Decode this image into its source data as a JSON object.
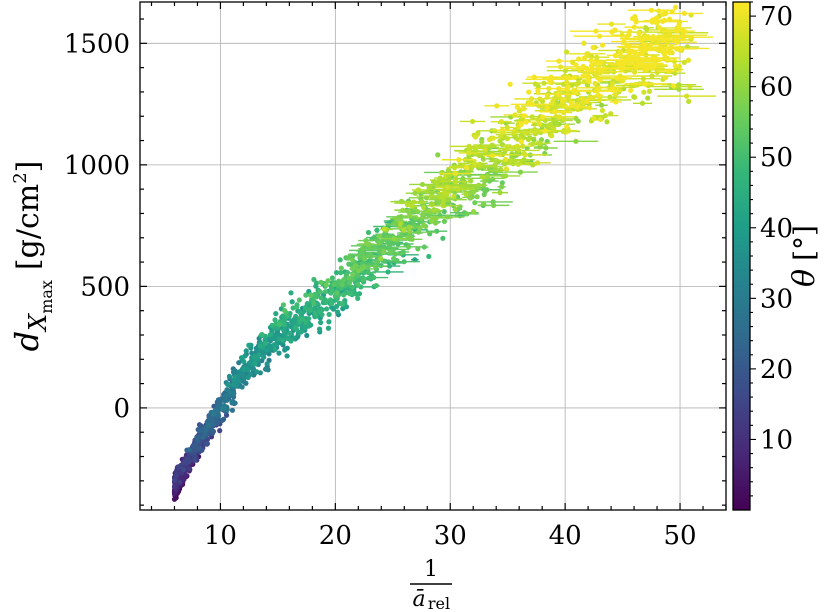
{
  "chart_data": {
    "type": "scatter",
    "title": "",
    "xlabel": {
      "numerator": "1",
      "symbol": "ā",
      "subscript": "rel"
    },
    "ylabel": {
      "symbol": "d",
      "sub_symbol": "X",
      "sub_sub": "max",
      "unit_prefix": "[g/cm",
      "unit_power": "2",
      "unit_suffix": "]"
    },
    "xlim": [
      3,
      54
    ],
    "ylim": [
      -420,
      1670
    ],
    "x_ticks": [
      10,
      20,
      30,
      40,
      50
    ],
    "x_tick_labels": [
      "10",
      "20",
      "30",
      "40",
      "50"
    ],
    "y_ticks": [
      0,
      500,
      1000,
      1500
    ],
    "y_tick_labels": [
      "0",
      "500",
      "1000",
      "1500"
    ],
    "grid": true,
    "colorbar": {
      "label_symbol": "θ",
      "label_unit": "[°]",
      "range": [
        0,
        72
      ],
      "ticks": [
        10,
        20,
        30,
        40,
        50,
        60,
        70
      ],
      "tick_labels": [
        "10",
        "20",
        "30",
        "40",
        "50",
        "60",
        "70"
      ],
      "colormap": "viridis",
      "colors": [
        "#440154",
        "#482878",
        "#3e4989",
        "#31688e",
        "#26828e",
        "#1f9e89",
        "#35b779",
        "#6ece58",
        "#b5de2b",
        "#fde725"
      ]
    },
    "trend": {
      "description_points": [
        {
          "x": 6,
          "y": -320,
          "theta": 5
        },
        {
          "x": 8,
          "y": -160,
          "theta": 15
        },
        {
          "x": 10,
          "y": 0,
          "theta": 25
        },
        {
          "x": 12,
          "y": 150,
          "theta": 33
        },
        {
          "x": 15,
          "y": 300,
          "theta": 40
        },
        {
          "x": 20,
          "y": 480,
          "theta": 47
        },
        {
          "x": 25,
          "y": 700,
          "theta": 54
        },
        {
          "x": 30,
          "y": 900,
          "theta": 60
        },
        {
          "x": 35,
          "y": 1080,
          "theta": 64
        },
        {
          "x": 40,
          "y": 1270,
          "theta": 67
        },
        {
          "x": 45,
          "y": 1420,
          "theta": 70
        },
        {
          "x": 50,
          "y": 1520,
          "theta": 71
        }
      ]
    }
  }
}
